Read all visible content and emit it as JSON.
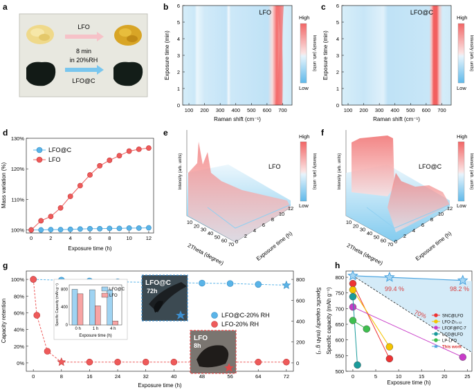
{
  "panel_labels": {
    "a": "a",
    "b": "b",
    "c": "c",
    "d": "d",
    "e": "e",
    "f": "f",
    "g": "g",
    "h": "h"
  },
  "colors": {
    "lfoc": "#5ab4e8",
    "lfo": "#ee5a5a",
    "high": "#f06a6a",
    "low": "#6fc0ec",
    "star": "#4aa3df"
  },
  "panel_a": {
    "label_top": "LFO",
    "label_mid": "8 min",
    "label_mid2": "in 20%RH",
    "label_bot": "LFO@C"
  },
  "colorbar": {
    "high": "High",
    "low": "Low",
    "title": "Intensity (arb. units)"
  },
  "chart_data": [
    {
      "id": "b",
      "type": "heatmap",
      "title": "LFO",
      "xlabel": "Raman shift (cm⁻¹)",
      "ylabel": "Exposure time (min)",
      "x_ticks": [
        "100",
        "200",
        "300",
        "400",
        "500",
        "600",
        "700"
      ],
      "y_ticks": [
        "0",
        "1",
        "2",
        "3",
        "4",
        "5",
        "6"
      ],
      "xlim": [
        60,
        760
      ],
      "ylim": [
        0,
        6
      ]
    },
    {
      "id": "c",
      "type": "heatmap",
      "title": "LFO@C",
      "xlabel": "Raman shift (cm⁻¹)",
      "ylabel": "Exposure time (min)",
      "x_ticks": [
        "100",
        "200",
        "300",
        "400",
        "500",
        "600",
        "700"
      ],
      "y_ticks": [
        "0",
        "1",
        "2",
        "3",
        "4",
        "5",
        "6"
      ],
      "xlim": [
        60,
        760
      ],
      "ylim": [
        0,
        6
      ]
    },
    {
      "id": "d",
      "type": "line",
      "xlabel": "Exposure time (h)",
      "ylabel": "Mass variation (%)",
      "x": [
        0,
        1,
        2,
        3,
        4,
        5,
        6,
        7,
        8,
        9,
        10,
        11,
        12
      ],
      "xlim": [
        -0.5,
        12.5
      ],
      "ylim": [
        99,
        130
      ],
      "x_ticks": [
        "0",
        "2",
        "4",
        "6",
        "8",
        "10",
        "12"
      ],
      "y_ticks": [
        "100%",
        "110%",
        "120%",
        "130%"
      ],
      "series": [
        {
          "name": "LFO@C",
          "values": [
            100,
            100,
            100.1,
            100.1,
            100.2,
            100.3,
            100.4,
            100.4,
            100.5,
            100.5,
            100.6,
            100.6,
            100.7
          ]
        },
        {
          "name": "LFO",
          "values": [
            100,
            103,
            104.4,
            107.2,
            111,
            114.5,
            118,
            121,
            122.8,
            124.3,
            125.8,
            126.4,
            126.8
          ]
        }
      ]
    },
    {
      "id": "e",
      "type": "surface3d",
      "title": "LFO",
      "xlabel": "2Theta (degree)",
      "ylabel": "Exposure time (h)",
      "zlabel": "Intensity (arb. units)",
      "x_ticks": [
        "10",
        "20",
        "30",
        "40",
        "50",
        "60",
        "70"
      ],
      "y_ticks": [
        "0",
        "2",
        "4",
        "6",
        "8",
        "10",
        "12"
      ]
    },
    {
      "id": "f",
      "type": "surface3d",
      "title": "LFO@C",
      "xlabel": "2Theta (degree)",
      "ylabel": "Exposure time (h)",
      "zlabel": "Intensity (arb. units)",
      "x_ticks": [
        "10",
        "20",
        "30",
        "40",
        "50",
        "60",
        "70"
      ],
      "y_ticks": [
        "0",
        "2",
        "4",
        "6",
        "8",
        "10",
        "12"
      ]
    },
    {
      "id": "g",
      "type": "scatter",
      "xlabel": "Exposure time (h)",
      "ylabel": "Capacity retention",
      "ylabel_right": "Specific capacity (mAh g⁻¹)",
      "xlim": [
        -2,
        74
      ],
      "ylim": [
        -0.1,
        1.1
      ],
      "x_ticks": [
        "0",
        "8",
        "16",
        "24",
        "32",
        "40",
        "48",
        "56",
        "64",
        "72"
      ],
      "y_ticks": [
        "0%",
        "20%",
        "40%",
        "60%",
        "80%",
        "100%"
      ],
      "y2_ticks": [
        "0",
        "200",
        "400",
        "600",
        "800"
      ],
      "series": [
        {
          "name": "LFO@C-20% RH",
          "x": [
            0,
            8,
            16,
            24,
            32,
            40,
            48,
            56,
            64,
            72
          ],
          "values": [
            1.0,
            0.99,
            0.98,
            0.97,
            0.965,
            0.96,
            0.955,
            0.95,
            0.94,
            0.93
          ]
        },
        {
          "name": "LFO-20% RH",
          "x": [
            0,
            1,
            4,
            8,
            16,
            24,
            32,
            40,
            48,
            56,
            64,
            72
          ],
          "values": [
            1.0,
            0.57,
            0.14,
            0.01,
            0.01,
            0.01,
            0.01,
            0.01,
            0.01,
            0.01,
            0.01,
            0.01
          ]
        }
      ],
      "photo1": {
        "title": "LFO@C",
        "time": "72h"
      },
      "photo2": {
        "title": "LFO",
        "time": "8h"
      },
      "inset": {
        "type": "bar",
        "ylabel": "Specific Capacity (mAh g⁻¹)",
        "xlabel": "Exposure time (h)",
        "categories": [
          "0 h",
          "1 h",
          "4 h"
        ],
        "y_ticks": [
          "0",
          "400",
          "800"
        ],
        "ylim": [
          0,
          900
        ],
        "series": [
          {
            "name": "LFO@C",
            "values": [
              800,
              790,
              790
            ]
          },
          {
            "name": "LFO",
            "values": [
              700,
              430,
              90
            ]
          }
        ]
      }
    },
    {
      "id": "h",
      "type": "scatter",
      "xlabel": "Exposure time (h)",
      "ylabel": "Specific capacity (mAh g⁻¹)",
      "xlim": [
        -1.5,
        26
      ],
      "ylim": [
        500,
        820
      ],
      "x_ticks": [
        "0",
        "5",
        "10",
        "15",
        "20",
        "25"
      ],
      "y_ticks": [
        "500",
        "550",
        "600",
        "650",
        "700",
        "750",
        "800"
      ],
      "annotations": [
        "99.4 %",
        "98.2 %",
        "70%"
      ],
      "series": [
        {
          "name": "SNC@LFO",
          "color": "#ee3333",
          "x": [
            0,
            8
          ],
          "values": [
            780,
            540
          ]
        },
        {
          "name": "LFO-Zr₀.₀₂",
          "color": "#f5c400",
          "x": [
            0,
            8
          ],
          "values": [
            760,
            578
          ]
        },
        {
          "name": "LFOF@FC-7",
          "color": "#c83cc8",
          "x": [
            0,
            24
          ],
          "values": [
            705,
            545
          ]
        },
        {
          "name": "LCO@LFO",
          "color": "#1a9b9b",
          "x": [
            0,
            1
          ],
          "values": [
            738,
            520
          ]
        },
        {
          "name": "LP-LFO",
          "color": "#3fbf4f",
          "x": [
            0,
            3
          ],
          "values": [
            662,
            635
          ]
        },
        {
          "name": "This work",
          "color": "#4aa3df",
          "x": [
            0,
            8,
            24
          ],
          "values": [
            805,
            800,
            790
          ]
        }
      ]
    }
  ]
}
